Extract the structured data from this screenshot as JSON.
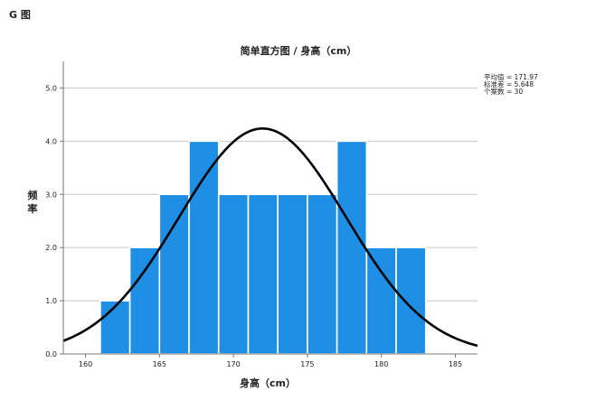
{
  "page_label": "G 图",
  "chart_data": {
    "type": "bar",
    "title": "简单直方图 / 身高（cm）",
    "xlabel": "身高（cm）",
    "ylabel": "频率",
    "xlim": [
      158.5,
      186.5
    ],
    "ylim": [
      0,
      5.5
    ],
    "x_ticks": [
      160,
      165,
      170,
      175,
      180,
      185
    ],
    "y_ticks": [
      "0.0",
      "1.0",
      "2.0",
      "3.0",
      "4.0",
      "5.0"
    ],
    "bin_width": 2,
    "bins": [
      {
        "start": 161,
        "count": 1
      },
      {
        "start": 163,
        "count": 2
      },
      {
        "start": 165,
        "count": 3
      },
      {
        "start": 167,
        "count": 4
      },
      {
        "start": 169,
        "count": 3
      },
      {
        "start": 171,
        "count": 3
      },
      {
        "start": 173,
        "count": 3
      },
      {
        "start": 175,
        "count": 3
      },
      {
        "start": 177,
        "count": 4
      },
      {
        "start": 179,
        "count": 2
      },
      {
        "start": 181,
        "count": 2
      }
    ],
    "normal_curve": {
      "mean": 171.97,
      "sd": 5.648,
      "n": 30
    },
    "stats": [
      "平均值 = 171.97",
      "标准差 = 5.648",
      "个案数 = 30"
    ],
    "grid": true,
    "bar_color": "#1f8fe5",
    "curve_color": "#000000"
  }
}
